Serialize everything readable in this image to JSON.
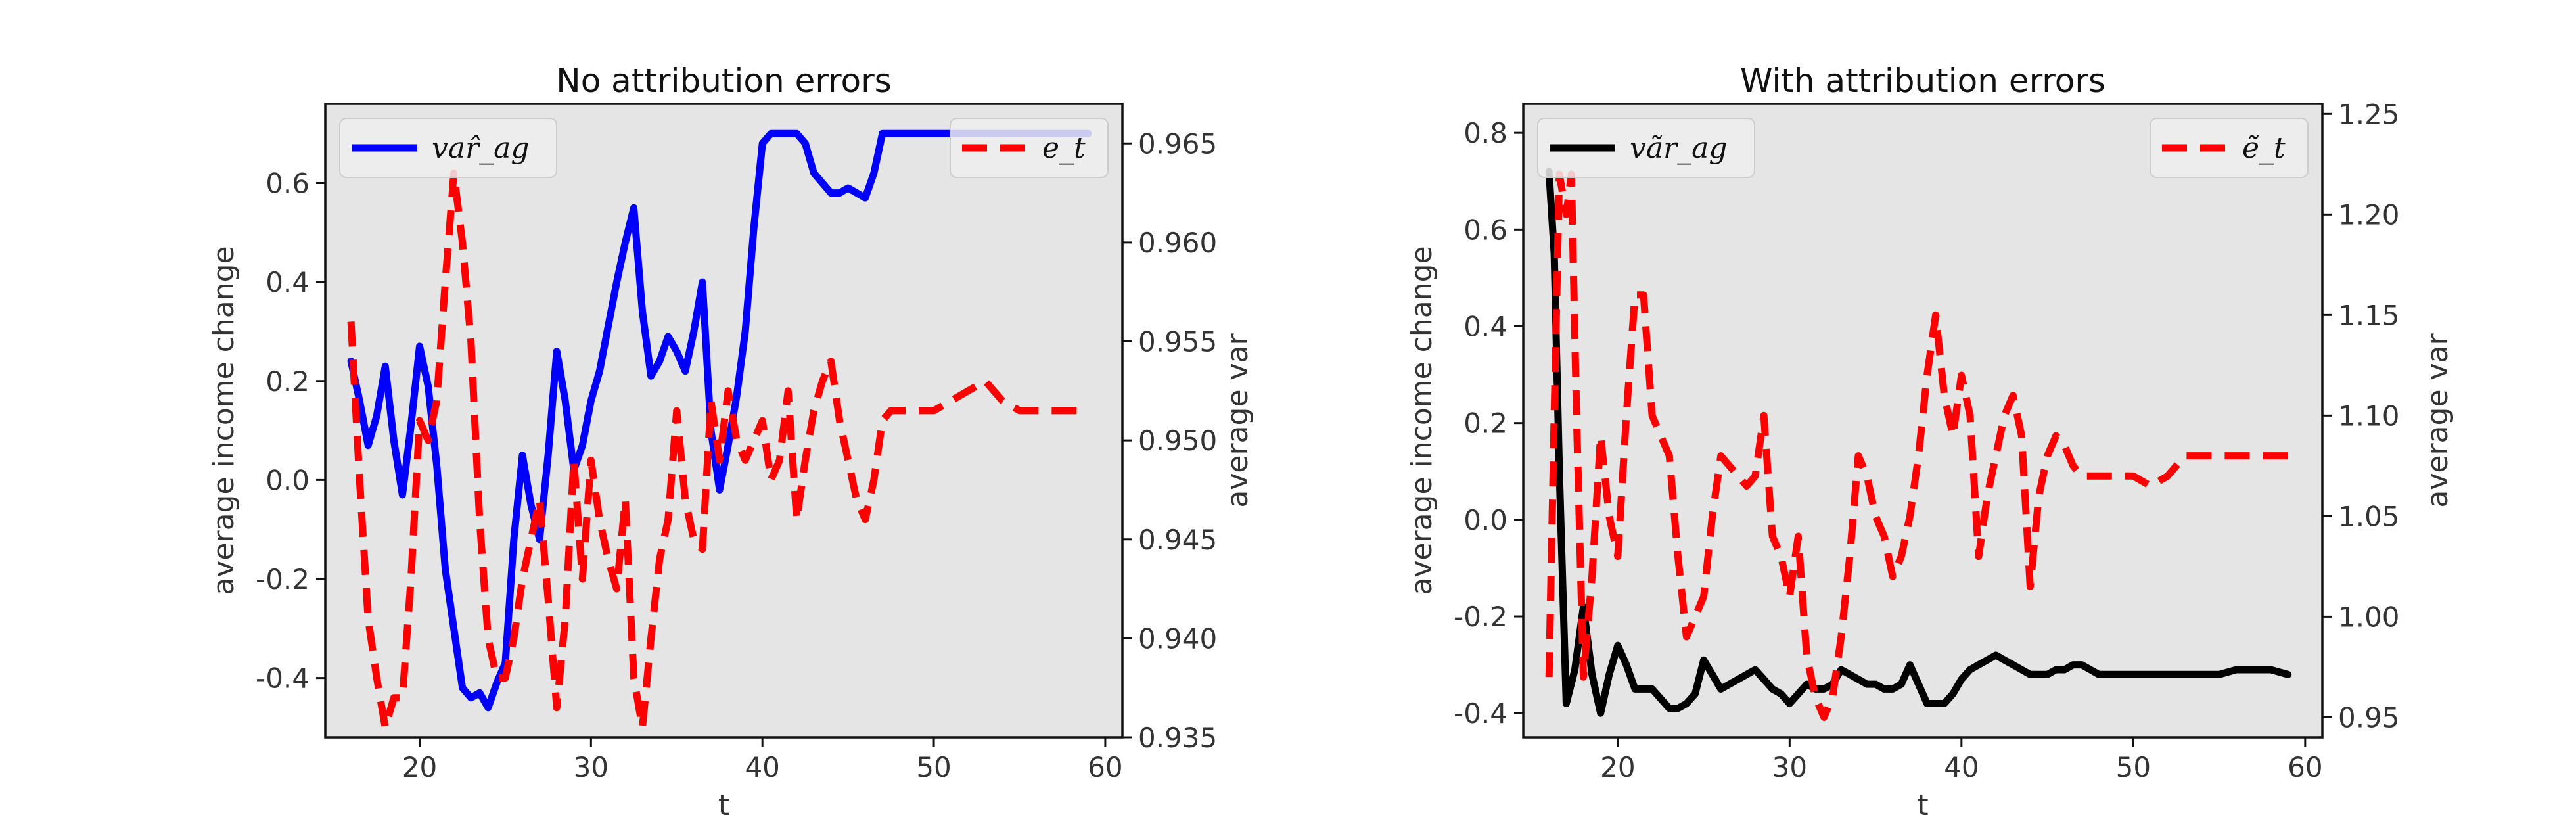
{
  "chart_data": [
    {
      "type": "line",
      "title": "No attribution errors",
      "xlabel": "t",
      "ylabel_left": "average income change",
      "ylabel_right": "average var",
      "xlim": [
        14.5,
        61
      ],
      "ylim_left": [
        -0.52,
        0.76
      ],
      "ylim_right": [
        0.935,
        0.967
      ],
      "xticks": [
        "20",
        "30",
        "40",
        "50",
        "60"
      ],
      "yticks_left": [
        "-0.4",
        "-0.2",
        "0.0",
        "0.2",
        "0.4",
        "0.6"
      ],
      "yticks_right": [
        "0.935",
        "0.940",
        "0.945",
        "0.950",
        "0.955",
        "0.960",
        "0.965"
      ],
      "background": "#e5e5e5",
      "series": [
        {
          "name": "var̂_ag",
          "axis": "left",
          "color": "#0000ff",
          "style": "solid",
          "legend_position": "top-left",
          "x": [
            16,
            16.5,
            17,
            17.5,
            18,
            18.5,
            19,
            19.5,
            20,
            20.5,
            21,
            21.5,
            22,
            22.5,
            23,
            23.5,
            24,
            24.5,
            25,
            25.5,
            26,
            26.5,
            27,
            27.5,
            28,
            28.5,
            29,
            29.5,
            30,
            30.5,
            31,
            31.5,
            32,
            32.5,
            33,
            33.5,
            34,
            34.5,
            35,
            35.5,
            36,
            36.5,
            37,
            37.5,
            38,
            38.5,
            39,
            39.5,
            40,
            40.5,
            41,
            41.5,
            42,
            42.5,
            43,
            43.5,
            44,
            44.5,
            45,
            45.5,
            46,
            46.5,
            47,
            47.5,
            48,
            49,
            50,
            51,
            52,
            53,
            54,
            55,
            56,
            57,
            58,
            59
          ],
          "values": [
            0.24,
            0.16,
            0.07,
            0.13,
            0.23,
            0.08,
            -0.03,
            0.11,
            0.27,
            0.19,
            0.03,
            -0.18,
            -0.3,
            -0.42,
            -0.44,
            -0.43,
            -0.46,
            -0.41,
            -0.37,
            -0.12,
            0.05,
            -0.05,
            -0.12,
            0.05,
            0.26,
            0.16,
            0.02,
            0.07,
            0.16,
            0.22,
            0.31,
            0.4,
            0.48,
            0.55,
            0.34,
            0.21,
            0.24,
            0.29,
            0.26,
            0.22,
            0.3,
            0.4,
            0.1,
            -0.02,
            0.07,
            0.17,
            0.3,
            0.51,
            0.68,
            0.7,
            0.7,
            0.7,
            0.7,
            0.68,
            0.62,
            0.6,
            0.58,
            0.58,
            0.59,
            0.58,
            0.57,
            0.62,
            0.7,
            0.7,
            0.7,
            0.7,
            0.7,
            0.7,
            0.7,
            0.7,
            0.7,
            0.7,
            0.7,
            0.7,
            0.7,
            0.7
          ]
        },
        {
          "name": "e_t",
          "axis": "right",
          "color": "#ff0000",
          "style": "dashed",
          "legend_position": "top-right",
          "x": [
            16,
            16.5,
            17,
            17.5,
            18,
            18.5,
            19,
            19.5,
            20,
            20.5,
            21,
            21.5,
            22,
            22.5,
            23,
            23.5,
            24,
            24.5,
            25,
            25.5,
            26,
            26.5,
            27,
            27.5,
            28,
            28.5,
            29,
            29.5,
            30,
            30.5,
            31,
            31.5,
            32,
            32.5,
            33,
            33.5,
            34,
            34.5,
            35,
            35.5,
            36,
            36.5,
            37,
            37.5,
            38,
            38.5,
            39,
            39.5,
            40,
            40.5,
            41,
            41.5,
            42,
            42.5,
            43,
            43.5,
            44,
            44.5,
            45,
            45.5,
            46,
            46.5,
            47,
            47.5,
            48,
            49,
            50,
            51,
            52,
            53,
            54,
            55,
            56,
            57,
            58,
            59
          ],
          "values": [
            0.956,
            0.948,
            0.941,
            0.938,
            0.9355,
            0.937,
            0.937,
            0.943,
            0.951,
            0.95,
            0.952,
            0.958,
            0.9635,
            0.96,
            0.955,
            0.946,
            0.94,
            0.938,
            0.938,
            0.94,
            0.943,
            0.945,
            0.947,
            0.942,
            0.9365,
            0.941,
            0.949,
            0.943,
            0.949,
            0.946,
            0.944,
            0.9425,
            0.947,
            0.938,
            0.9355,
            0.94,
            0.944,
            0.946,
            0.9515,
            0.947,
            0.945,
            0.9445,
            0.952,
            0.949,
            0.9525,
            0.95,
            0.949,
            0.95,
            0.951,
            0.948,
            0.949,
            0.9525,
            0.946,
            0.949,
            0.9515,
            0.953,
            0.954,
            0.951,
            0.949,
            0.947,
            0.946,
            0.948,
            0.951,
            0.9515,
            0.9515,
            0.9515,
            0.9515,
            0.952,
            0.9525,
            0.953,
            0.952,
            0.9515,
            0.9515,
            0.9515,
            0.9515,
            0.9515
          ]
        }
      ]
    },
    {
      "type": "line",
      "title": "With attribution errors",
      "xlabel": "t",
      "ylabel_left": "average income change",
      "ylabel_right": "average var",
      "xlim": [
        14.5,
        61
      ],
      "ylim_left": [
        -0.45,
        0.86
      ],
      "ylim_right": [
        0.94,
        1.255
      ],
      "xticks": [
        "20",
        "30",
        "40",
        "50",
        "60"
      ],
      "yticks_left": [
        "-0.4",
        "-0.2",
        "0.0",
        "0.2",
        "0.4",
        "0.6",
        "0.8"
      ],
      "yticks_right": [
        "0.95",
        "1.00",
        "1.05",
        "1.10",
        "1.15",
        "1.20",
        "1.25"
      ],
      "background": "#e5e5e5",
      "series": [
        {
          "name": "vãr_ag",
          "axis": "left",
          "color": "#000000",
          "style": "solid",
          "legend_position": "top-left",
          "x": [
            16,
            16.3,
            16.6,
            17,
            17.5,
            18,
            18.5,
            19,
            19.5,
            20,
            20.5,
            21,
            21.5,
            22,
            22.5,
            23,
            23.5,
            24,
            24.5,
            25,
            25.5,
            26,
            26.5,
            27,
            27.5,
            28,
            28.5,
            29,
            29.5,
            30,
            30.5,
            31,
            31.5,
            32,
            32.5,
            33,
            33.5,
            34,
            34.5,
            35,
            35.5,
            36,
            36.5,
            37,
            37.5,
            38,
            38.5,
            39,
            39.5,
            40,
            40.5,
            41,
            41.5,
            42,
            42.5,
            43,
            43.5,
            44,
            44.5,
            45,
            45.5,
            46,
            46.5,
            47,
            47.5,
            48,
            49,
            50,
            51,
            52,
            53,
            54,
            55,
            56,
            57,
            58,
            59
          ],
          "values": [
            0.72,
            0.55,
            0.1,
            -0.38,
            -0.31,
            -0.18,
            -0.32,
            -0.4,
            -0.32,
            -0.26,
            -0.3,
            -0.35,
            -0.35,
            -0.35,
            -0.37,
            -0.39,
            -0.39,
            -0.38,
            -0.36,
            -0.29,
            -0.32,
            -0.35,
            -0.34,
            -0.33,
            -0.32,
            -0.31,
            -0.33,
            -0.35,
            -0.36,
            -0.38,
            -0.36,
            -0.34,
            -0.35,
            -0.35,
            -0.34,
            -0.31,
            -0.32,
            -0.33,
            -0.34,
            -0.34,
            -0.35,
            -0.35,
            -0.34,
            -0.3,
            -0.34,
            -0.38,
            -0.38,
            -0.38,
            -0.36,
            -0.33,
            -0.31,
            -0.3,
            -0.29,
            -0.28,
            -0.29,
            -0.3,
            -0.31,
            -0.32,
            -0.32,
            -0.32,
            -0.31,
            -0.31,
            -0.3,
            -0.3,
            -0.31,
            -0.32,
            -0.32,
            -0.32,
            -0.32,
            -0.32,
            -0.32,
            -0.32,
            -0.32,
            -0.31,
            -0.31,
            -0.31,
            -0.32
          ]
        },
        {
          "name": "ẽ_t",
          "axis": "right",
          "color": "#ff0000",
          "style": "dashed",
          "legend_position": "top-right",
          "x": [
            16,
            16.3,
            16.6,
            17,
            17.3,
            17.6,
            18,
            18.5,
            19,
            19.5,
            20,
            20.5,
            21,
            21.5,
            22,
            22.5,
            23,
            23.5,
            24,
            24.5,
            25,
            25.5,
            26,
            26.5,
            27,
            27.5,
            28,
            28.5,
            29,
            29.5,
            30,
            30.5,
            31,
            31.5,
            32,
            32.5,
            33,
            33.5,
            34,
            34.5,
            35,
            35.5,
            36,
            36.5,
            37,
            37.5,
            38,
            38.5,
            39,
            39.5,
            40,
            40.5,
            41,
            41.5,
            42,
            42.5,
            43,
            43.5,
            44,
            44.5,
            45,
            45.5,
            46,
            46.5,
            47,
            47.5,
            48,
            49,
            50,
            51,
            52,
            53,
            54,
            55,
            56,
            57,
            58,
            59
          ],
          "values": [
            0.97,
            1.1,
            1.22,
            1.2,
            1.22,
            1.1,
            0.97,
            1.02,
            1.09,
            1.05,
            1.03,
            1.1,
            1.16,
            1.16,
            1.1,
            1.09,
            1.08,
            1.03,
            0.99,
            1.0,
            1.01,
            1.05,
            1.08,
            1.075,
            1.07,
            1.065,
            1.07,
            1.1,
            1.04,
            1.03,
            1.01,
            1.04,
            0.98,
            0.96,
            0.95,
            0.96,
            0.99,
            1.03,
            1.08,
            1.07,
            1.05,
            1.04,
            1.02,
            1.03,
            1.05,
            1.08,
            1.12,
            1.15,
            1.11,
            1.09,
            1.12,
            1.1,
            1.03,
            1.06,
            1.08,
            1.1,
            1.11,
            1.09,
            1.015,
            1.06,
            1.08,
            1.09,
            1.085,
            1.075,
            1.07,
            1.07,
            1.07,
            1.07,
            1.07,
            1.065,
            1.07,
            1.08,
            1.08,
            1.08,
            1.08,
            1.08,
            1.08,
            1.08
          ]
        }
      ]
    }
  ]
}
